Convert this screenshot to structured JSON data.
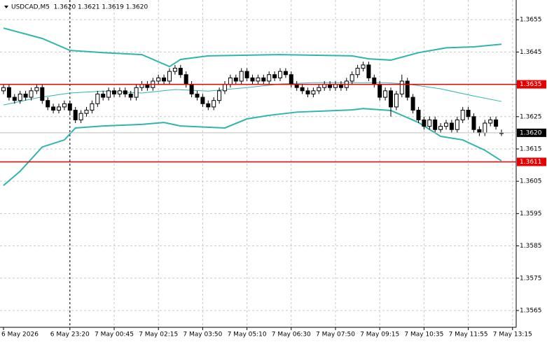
{
  "chart_data": {
    "type": "candlestick",
    "title": "USDCAD,M5  1.3620 1.3621 1.3619 1.3620",
    "categories": [
      "6 May 2026",
      null,
      null,
      null,
      null,
      null,
      null,
      null,
      null,
      null,
      null,
      null,
      "6 May 23:20",
      null,
      null,
      null,
      null,
      null,
      null,
      null,
      "7 May 00:45",
      null,
      null,
      null,
      null,
      null,
      null,
      null,
      "7 May 02:15",
      null,
      null,
      null,
      null,
      null,
      null,
      null,
      "7 May 03:50",
      null,
      null,
      null,
      null,
      null,
      null,
      null,
      "7 May 05:10",
      null,
      null,
      null,
      null,
      null,
      null,
      null,
      "7 May 06:30",
      null,
      null,
      null,
      null,
      null,
      null,
      null,
      "7 May 07:50",
      null,
      null,
      null,
      null,
      null,
      null,
      null,
      "7 May 09:15",
      null,
      null,
      null,
      null,
      null,
      null,
      null,
      "7 May 10:35",
      null,
      null,
      null,
      null,
      null,
      null,
      null,
      "7 May 11:55",
      null,
      null,
      null,
      null,
      null,
      null,
      null,
      "7 May 13:15"
    ],
    "open": [
      1.3633,
      1.3634,
      1.3631,
      1.363,
      1.3632,
      1.3631,
      1.3633,
      1.3634,
      1.363,
      1.3628,
      1.3627,
      1.3628,
      1.3629,
      1.3627,
      1.3624,
      1.3626,
      1.3627,
      1.3629,
      1.3632,
      1.3631,
      1.3633,
      1.3632,
      1.3633,
      1.3632,
      1.3631,
      1.3634,
      1.3635,
      1.3634,
      1.3636,
      1.3637,
      1.3636,
      1.3639,
      1.364,
      1.3638,
      1.3635,
      1.3632,
      1.3631,
      1.3629,
      1.3628,
      1.363,
      1.3633,
      1.3635,
      1.3637,
      1.3636,
      1.3639,
      1.3637,
      1.3636,
      1.3637,
      1.3636,
      1.3638,
      1.3637,
      1.3639,
      1.3638,
      1.3635,
      1.3634,
      1.3633,
      1.3632,
      1.3633,
      1.3634,
      1.3635,
      1.3634,
      1.3635,
      1.3634,
      1.3636,
      1.3638,
      1.364,
      1.3641,
      1.3637,
      1.3635,
      1.3631,
      1.3633,
      1.3628,
      1.3632,
      1.3636,
      1.3631,
      1.3627,
      1.3624,
      1.3622,
      1.3624,
      1.3621,
      1.3622,
      1.3623,
      1.3621,
      1.3624,
      1.3627,
      1.3625,
      1.3621,
      1.362,
      1.3623,
      1.3624,
      1.362,
      null,
      null
    ],
    "high": [
      1.3635,
      1.3635,
      1.3632,
      1.3633,
      1.3633,
      1.3634,
      1.3635,
      1.3635,
      1.3631,
      1.3629,
      1.3629,
      1.363,
      1.363,
      1.3628,
      1.3627,
      1.3628,
      1.363,
      1.3633,
      1.3633,
      1.3634,
      1.3634,
      1.3634,
      1.3634,
      1.3633,
      1.3635,
      1.3636,
      1.3636,
      1.3637,
      1.3638,
      1.3638,
      1.364,
      1.3641,
      1.3641,
      1.3639,
      1.3636,
      1.3633,
      1.3632,
      1.363,
      1.3631,
      1.3634,
      1.3636,
      1.3638,
      1.3638,
      1.364,
      1.364,
      1.3638,
      1.3638,
      1.3638,
      1.3639,
      1.3639,
      1.364,
      1.364,
      1.3639,
      1.3636,
      1.3635,
      1.3634,
      1.3634,
      1.3635,
      1.3636,
      1.3636,
      1.3636,
      1.3636,
      1.3637,
      1.3639,
      1.3641,
      1.3642,
      1.3642,
      1.3638,
      1.3636,
      1.3634,
      1.3634,
      1.3633,
      1.3638,
      1.3637,
      1.3632,
      1.3628,
      1.3625,
      1.3625,
      1.3625,
      1.3623,
      1.3624,
      1.3624,
      1.3625,
      1.3628,
      1.3628,
      1.3626,
      1.3622,
      1.3624,
      1.3625,
      1.3625,
      1.3621,
      null,
      null
    ],
    "low": [
      1.3632,
      1.363,
      1.3629,
      1.3629,
      1.363,
      1.363,
      1.3632,
      1.3629,
      1.3627,
      1.3626,
      1.3626,
      1.3627,
      1.3626,
      1.3623,
      1.3623,
      1.3625,
      1.3626,
      1.3628,
      1.363,
      1.363,
      1.3631,
      1.3631,
      1.3631,
      1.363,
      1.363,
      1.3633,
      1.3633,
      1.3633,
      1.3635,
      1.3635,
      1.3635,
      1.3638,
      1.3637,
      1.3634,
      1.3631,
      1.363,
      1.3628,
      1.3627,
      1.3627,
      1.3629,
      1.3632,
      1.3634,
      1.3635,
      1.3635,
      1.3636,
      1.3635,
      1.3635,
      1.3635,
      1.3635,
      1.3636,
      1.3636,
      1.3637,
      1.3634,
      1.3633,
      1.3632,
      1.3631,
      1.3631,
      1.3632,
      1.3633,
      1.3633,
      1.3633,
      1.3633,
      1.3633,
      1.3635,
      1.3637,
      1.3639,
      1.3636,
      1.3634,
      1.363,
      1.363,
      1.3625,
      1.3627,
      1.3631,
      1.363,
      1.3626,
      1.3623,
      1.3621,
      1.3621,
      1.362,
      1.362,
      1.3621,
      1.362,
      1.362,
      1.3623,
      1.3624,
      1.362,
      1.3619,
      1.3619,
      1.3622,
      1.3621,
      1.3619,
      null,
      null
    ],
    "close": [
      1.3634,
      1.3631,
      1.363,
      1.3632,
      1.3631,
      1.3633,
      1.3634,
      1.363,
      1.3628,
      1.3627,
      1.3628,
      1.3629,
      1.3627,
      1.3624,
      1.3626,
      1.3627,
      1.3629,
      1.3632,
      1.3631,
      1.3633,
      1.3632,
      1.3633,
      1.3632,
      1.3631,
      1.3634,
      1.3635,
      1.3634,
      1.3636,
      1.3637,
      1.3636,
      1.3639,
      1.364,
      1.3638,
      1.3635,
      1.3632,
      1.3631,
      1.3629,
      1.3628,
      1.363,
      1.3633,
      1.3635,
      1.3637,
      1.3636,
      1.3639,
      1.3637,
      1.3636,
      1.3637,
      1.3636,
      1.3638,
      1.3637,
      1.3639,
      1.3638,
      1.3635,
      1.3634,
      1.3633,
      1.3632,
      1.3633,
      1.3634,
      1.3635,
      1.3634,
      1.3635,
      1.3634,
      1.3636,
      1.3638,
      1.364,
      1.3641,
      1.3637,
      1.3635,
      1.3631,
      1.3633,
      1.3628,
      1.3632,
      1.3636,
      1.3631,
      1.3627,
      1.3624,
      1.3622,
      1.3624,
      1.3621,
      1.3622,
      1.3623,
      1.3621,
      1.3624,
      1.3627,
      1.3625,
      1.3621,
      1.362,
      1.3623,
      1.3624,
      1.3622,
      1.362,
      null,
      null
    ],
    "candle_color": "#000000",
    "bands": [
      {
        "color": "#2fb5ad",
        "x": [
          0,
          7,
          12,
          18,
          25,
          30,
          32,
          37,
          50,
          63,
          66,
          70,
          75,
          80,
          85,
          90
        ],
        "values": [
          1.36524,
          1.36492,
          1.36455,
          1.36448,
          1.36442,
          1.36405,
          1.36427,
          1.36438,
          1.36442,
          1.36438,
          1.36429,
          1.36425,
          1.36448,
          1.36463,
          1.36466,
          1.36474
        ]
      },
      {
        "color": "#2fb5ad",
        "x": [
          0,
          6,
          12,
          18,
          25,
          31,
          37,
          44,
          50,
          56,
          69,
          73,
          79,
          85,
          90
        ],
        "values": [
          1.36286,
          1.36308,
          1.36323,
          1.36329,
          1.36323,
          1.36334,
          1.36329,
          1.3634,
          1.36351,
          1.36355,
          1.36355,
          1.36351,
          1.36336,
          1.36314,
          1.36297
        ]
      },
      {
        "color": "#2fb5ad",
        "x": [
          0,
          3,
          7,
          11,
          13,
          18,
          25,
          29,
          32,
          40,
          44,
          48,
          53,
          63,
          65,
          70,
          75,
          79,
          83,
          87,
          90
        ],
        "values": [
          1.36037,
          1.36081,
          1.36156,
          1.36178,
          1.36215,
          1.36221,
          1.36226,
          1.36232,
          1.36221,
          1.36215,
          1.36243,
          1.36254,
          1.36264,
          1.36271,
          1.36275,
          1.36269,
          1.36232,
          1.36189,
          1.36178,
          1.36146,
          1.36113
        ]
      }
    ],
    "levels": [
      {
        "value": 1.3635,
        "color": "#e60000"
      },
      {
        "value": 1.3611,
        "color": "#e60000"
      }
    ],
    "current_price": {
      "value": 1.362,
      "label": "1.3620"
    },
    "ylim": [
      1.35598,
      1.36611
    ],
    "yticks": [
      1.3655,
      1.3645,
      1.3635,
      1.3625,
      1.3615,
      1.3605,
      1.3595,
      1.3585,
      1.3575,
      1.3565
    ],
    "grid": true
  }
}
